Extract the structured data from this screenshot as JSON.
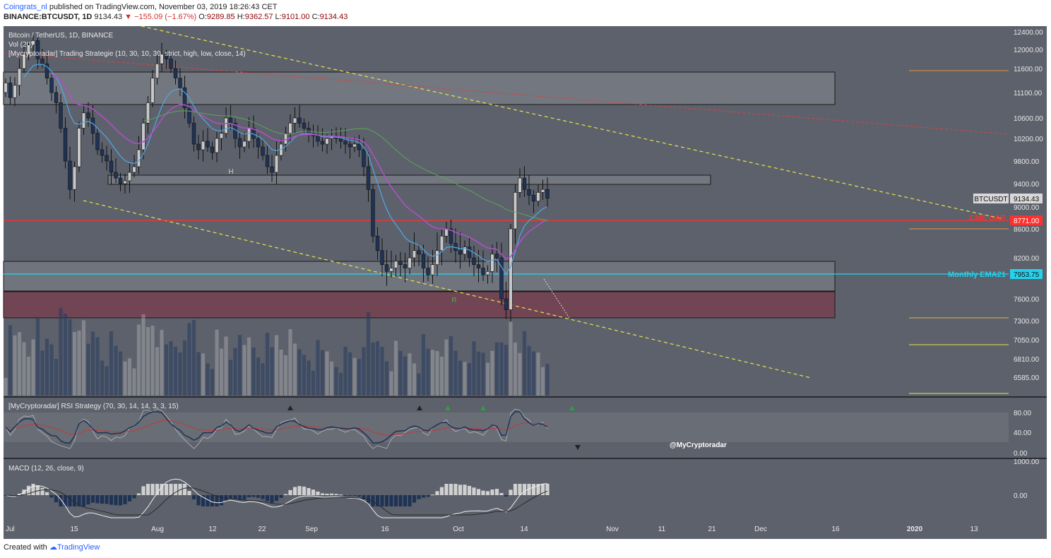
{
  "header": {
    "author": "Coingrats_nl",
    "published": " published on TradingView.com, November 03, 2019 18:26:43 CET",
    "symbol": "BINANCE:BTCUSDT, 1D",
    "last": "9134.43",
    "change": "−155.09 (−1.67%)",
    "o_label": "O:",
    "o": "9289.85",
    "h_label": "H:",
    "h": "9362.57",
    "l_label": "L:",
    "l": "9101.00",
    "c_label": "C:",
    "c": "9134.43"
  },
  "footer": {
    "created_with": "Created with",
    "brand": "TradingView"
  },
  "watermark": "@MyCryptoradar",
  "colors": {
    "panel_bg": "#5d616b",
    "up": "#c8c8c8",
    "down": "#1f3355",
    "support_line": "#ff3030",
    "ema_line": "#22d3ee",
    "yellow": "#e8e34a"
  },
  "chart_data": [
    {
      "type": "candlestick",
      "title": "Bitcoin / TetherUS, 1D, BINANCE",
      "indicator_labels": [
        "Vol (20)",
        "[Mycryptoradar] Trading Strategie (10, 30, 10, 30, strict, high, low, close, 14)"
      ],
      "y_ticks": [
        "12400.00",
        "12000.00",
        "11600.00",
        "11100.00",
        "10600.00",
        "10200.00",
        "9800.00",
        "9400.00",
        "9000.00",
        "8600.00",
        "8200.00",
        "7600.00",
        "7300.00",
        "7050.00",
        "6810.00",
        "6585.00"
      ],
      "x_ticks": [
        "Jul",
        "15",
        "Aug",
        "12",
        "22",
        "Sep",
        "16",
        "Oct",
        "14",
        "Nov",
        "11",
        "21",
        "Dec",
        "16",
        "2020",
        "13"
      ],
      "price_tag": {
        "label": "BTCUSDT",
        "value": "9134.43"
      },
      "level_tags": [
        {
          "label": "CME GAP",
          "value": "8771.00",
          "color": "#ff3030"
        },
        {
          "label": "Monthly EMA21",
          "value": "7953.75",
          "color": "#22d3ee"
        }
      ],
      "markers": [
        "H",
        "R"
      ],
      "candles_close": [
        11300,
        11000,
        11250,
        11600,
        11900,
        12100,
        12200,
        11800,
        11700,
        11400,
        11100,
        10900,
        10400,
        9800,
        9300,
        9700,
        10400,
        10700,
        10600,
        10300,
        10000,
        9900,
        9800,
        9600,
        9500,
        9400,
        9450,
        9600,
        9700,
        10000,
        10500,
        10900,
        11400,
        11700,
        11900,
        11800,
        11600,
        11400,
        11200,
        10800,
        10500,
        10100,
        10000,
        10150,
        10050,
        9950,
        10200,
        10300,
        10600,
        10500,
        10200,
        10050,
        10150,
        10400,
        10200,
        10050,
        9900,
        9700,
        9600,
        9900,
        10100,
        10300,
        10500,
        10600,
        10500,
        10400,
        10300,
        10250,
        10150,
        10100,
        10200,
        10250,
        10200,
        10150,
        10100,
        10050,
        10100,
        10000,
        9700,
        9300,
        8500,
        8300,
        8100,
        8000,
        8050,
        8150,
        8100,
        8050,
        8200,
        8300,
        8250,
        8050,
        7950,
        8100,
        8300,
        8500,
        8600,
        8400,
        8300,
        8250,
        8350,
        8200,
        8100,
        8050,
        7950,
        8000,
        8250,
        8200,
        7600,
        7450,
        8600,
        9250,
        9500,
        9300,
        9200,
        9100,
        9250,
        9300,
        9150
      ],
      "volume_bars": 119,
      "sub_charts": [
        {
          "title": "[MyCryptoradar] RSI Strategy (70, 30, 14, 14, 3, 3, 15)",
          "y_ticks": [
            "80.00",
            "40.00",
            "0.00"
          ]
        },
        {
          "title": "MACD (12, 26, close, 9)",
          "y_ticks": [
            "1000.00",
            "0.00"
          ]
        }
      ]
    }
  ]
}
